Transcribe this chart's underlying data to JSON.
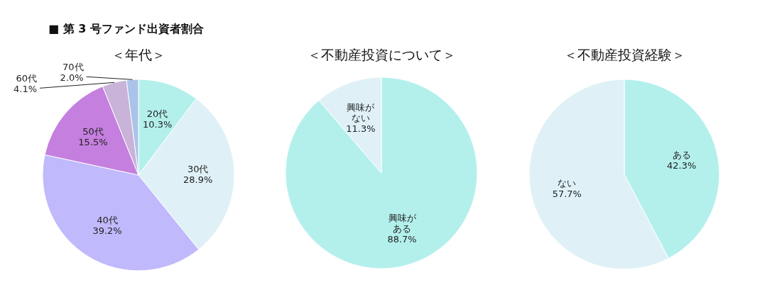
{
  "chart_data": [
    {
      "type": "pie",
      "title": "＜年代＞",
      "annotations": [
        "■ 第 3 号ファンド出資者割合"
      ],
      "categories": [
        "20代",
        "30代",
        "40代",
        "50代",
        "60代",
        "70代"
      ],
      "values": [
        10.3,
        28.9,
        39.2,
        15.5,
        4.1,
        2.0
      ],
      "value_labels": [
        "10.3%",
        "28.9%",
        "39.2%",
        "15.5%",
        "4.1%",
        "2.0%"
      ],
      "colors": [
        "#b3f0ec",
        "#dff1f6",
        "#c0b9fc",
        "#c57fde",
        "#c9b3d9",
        "#a9c4e8"
      ]
    },
    {
      "type": "pie",
      "title": "＜不動産投資について＞",
      "categories": [
        "興味がある",
        "興味がない"
      ],
      "values": [
        88.7,
        11.3
      ],
      "value_labels": [
        "88.7%",
        "11.3%"
      ],
      "colors": [
        "#b3f0ec",
        "#dff1f6"
      ]
    },
    {
      "type": "pie",
      "title": "＜不動産投資経験＞",
      "categories": [
        "ある",
        "ない"
      ],
      "values": [
        42.3,
        57.7
      ],
      "value_labels": [
        "42.3%",
        "57.7%"
      ],
      "colors": [
        "#b3f0ec",
        "#dff1f6"
      ]
    }
  ]
}
